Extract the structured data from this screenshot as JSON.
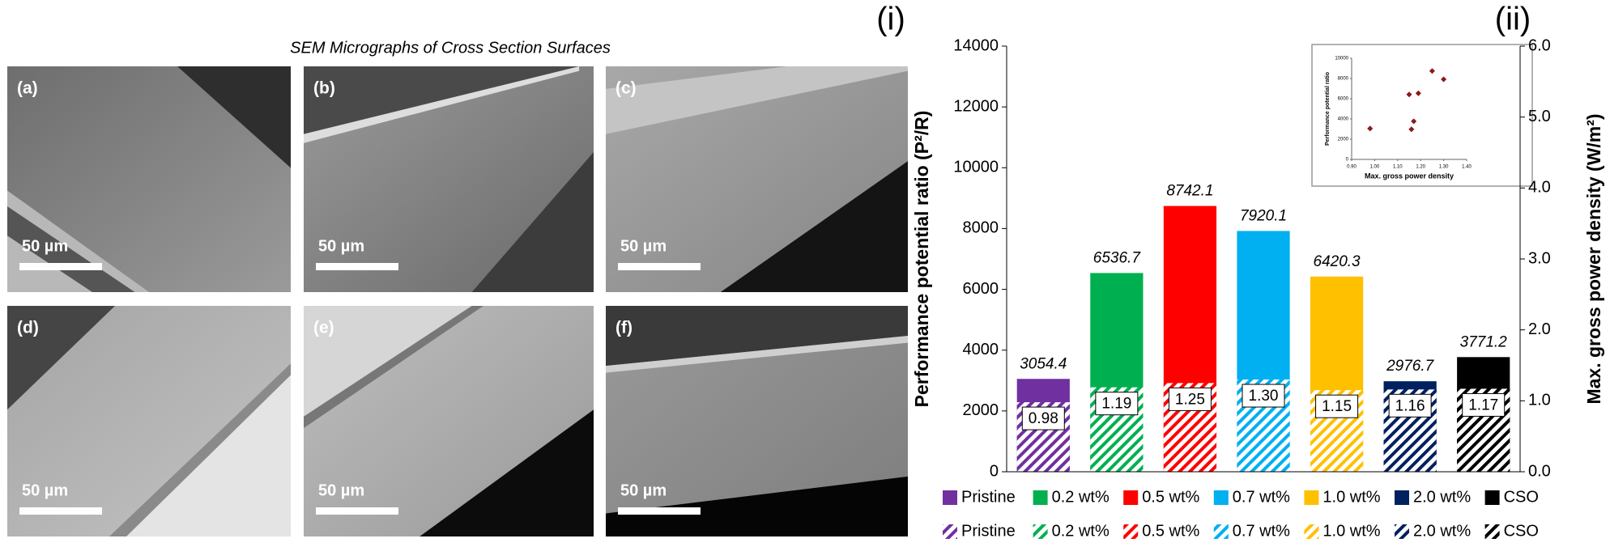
{
  "figure": {
    "panel_labels": [
      "(i)",
      "(ii)"
    ],
    "micrographs": {
      "title": "SEM Micrographs of Cross Section Surfaces",
      "images": [
        {
          "label": "(a)",
          "scale": "50 µm"
        },
        {
          "label": "(b)",
          "scale": "50 µm"
        },
        {
          "label": "(c)",
          "scale": "50 µm"
        },
        {
          "label": "(d)",
          "scale": "50 µm"
        },
        {
          "label": "(e)",
          "scale": "50 µm"
        },
        {
          "label": "(f)",
          "scale": "50 µm"
        }
      ]
    }
  },
  "chart_data": [
    {
      "type": "bar",
      "y_label": "Performance potential ratio (P²/R)",
      "y2_label": "Max. gross power density (W/m²)",
      "categories": [
        "Pristine",
        "0.2 wt%",
        "0.5 wt%",
        "0.7 wt%",
        "1.0 wt%",
        "2.0 wt%",
        "CSO"
      ],
      "colors": [
        "#7030a0",
        "#00b050",
        "#ff0000",
        "#00b0f0",
        "#ffc000",
        "#002060",
        "#000000"
      ],
      "series": [
        {
          "values": [
            3054.4,
            6536.7,
            8742.1,
            7920.1,
            6420.3,
            2976.7,
            3771.2
          ]
        },
        {
          "axis": "y2",
          "hatch": true,
          "values": [
            0.98,
            1.19,
            1.25,
            1.3,
            1.15,
            1.16,
            1.17
          ],
          "value_labels": [
            "0.98",
            "1.19",
            "1.25",
            "1.30",
            "1.15",
            "1.16",
            "1.17"
          ]
        }
      ],
      "ylim": [
        0,
        14000
      ],
      "yticks": [
        0,
        2000,
        4000,
        6000,
        8000,
        10000,
        12000,
        14000
      ],
      "y2lim": [
        0,
        6
      ],
      "y2ticks": [
        {
          "value": 0,
          "label": "0.0"
        },
        {
          "value": 1,
          "label": "1.0"
        },
        {
          "value": 2,
          "label": "2.0"
        },
        {
          "value": 3,
          "label": "3.0"
        },
        {
          "value": 4,
          "label": "4.0"
        },
        {
          "value": 5,
          "label": "5.0"
        },
        {
          "value": 6,
          "label": "6.0"
        }
      ]
    },
    {
      "type": "scatter",
      "x_label": "Max. gross power density",
      "y_label": "Performance potential ratio",
      "color": "#8b1a1a",
      "x": [
        0.98,
        1.19,
        1.25,
        1.3,
        1.15,
        1.16,
        1.17
      ],
      "values": [
        3054.4,
        6536.7,
        8742.1,
        7920.1,
        6420.3,
        2976.7,
        3771.2
      ],
      "xlim": [
        0.9,
        1.4
      ],
      "xticks": [
        {
          "value": 0.9,
          "label": "0.90"
        },
        {
          "value": 1,
          "label": "1.00"
        },
        {
          "value": 1.1,
          "label": "1.10"
        },
        {
          "value": 1.2,
          "label": "1.20"
        },
        {
          "value": 1.3,
          "label": "1.30"
        },
        {
          "value": 1.4,
          "label": "1.40"
        }
      ],
      "ylim": [
        0,
        10000
      ],
      "yticks": [
        0,
        2000,
        4000,
        6000,
        8000,
        10000
      ]
    }
  ]
}
